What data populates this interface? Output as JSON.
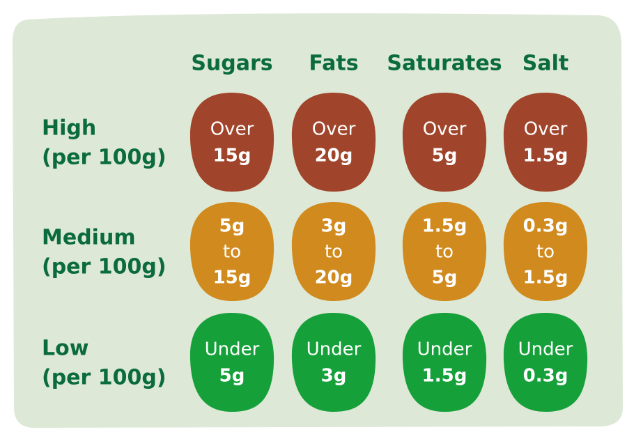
{
  "columns": [
    "Sugars",
    "Fats",
    "Saturates",
    "Salt"
  ],
  "rows": [
    {
      "level": "High",
      "basis": "(per 100g)",
      "cells": [
        [
          "Over",
          "15g"
        ],
        [
          "Over",
          "20g"
        ],
        [
          "Over",
          "5g"
        ],
        [
          "Over",
          "1.5g"
        ]
      ]
    },
    {
      "level": "Medium",
      "basis": "(per 100g)",
      "cells": [
        [
          "5g",
          "to",
          "15g"
        ],
        [
          "3g",
          "to",
          "20g"
        ],
        [
          "1.5g",
          "to",
          "5g"
        ],
        [
          "0.3g",
          "to",
          "1.5g"
        ]
      ]
    },
    {
      "level": "Low",
      "basis": "(per 100g)",
      "cells": [
        [
          "Under",
          "5g"
        ],
        [
          "Under",
          "3g"
        ],
        [
          "Under",
          "1.5g"
        ],
        [
          "Under",
          "0.3g"
        ]
      ]
    }
  ]
}
